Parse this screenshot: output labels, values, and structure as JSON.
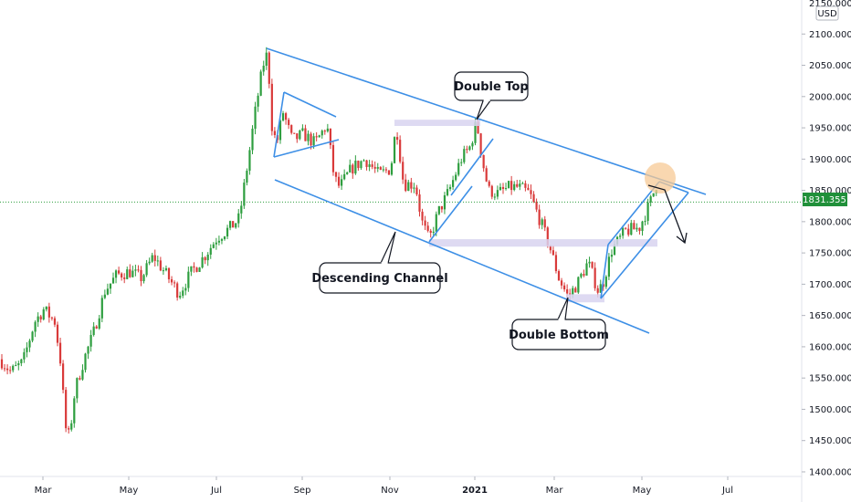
{
  "chart_data": {
    "type": "candlestick",
    "title": "",
    "currency": "USD",
    "x_labels": [
      "Mar",
      "May",
      "Jul",
      "Sep",
      "Nov",
      "2021",
      "Mar",
      "May",
      "Jul"
    ],
    "y_ticks": [
      "2150.000",
      "2100.000",
      "2050.000",
      "2000.000",
      "1950.000",
      "1900.000",
      "1850.000",
      "1800.000",
      "1750.000",
      "1700.000",
      "1650.000",
      "1600.000",
      "1550.000",
      "1500.000",
      "1450.000",
      "1400.000"
    ],
    "ylim": [
      1400,
      2150
    ],
    "current_price": "1831.355",
    "key_points": [
      {
        "label": "Mar 2020 low",
        "value": 1455
      },
      {
        "label": "Aug 2020 high",
        "value": 2070
      },
      {
        "label": "Nov 2020 low",
        "value": 1765
      },
      {
        "label": "Jan 2021 high",
        "value": 1960
      },
      {
        "label": "Mar 2021 low",
        "value": 1677
      },
      {
        "label": "May 2021 high",
        "value": 1865
      }
    ],
    "annotations": [
      "Double Top",
      "Descending Channel",
      "Double Bottom"
    ],
    "grid": true,
    "legend": "none"
  },
  "colors": {
    "up": "#26a69a",
    "down": "#ef5350",
    "up_candle": "#2e9e3f",
    "down_candle": "#d93a3a",
    "trendline": "#3d8fe6",
    "zone": "#d8d3f0",
    "price_badge": "#20903a",
    "price_line": "#2e9e3f",
    "axis_text": "#131722",
    "callout_border": "#131722",
    "target_circle": "#f7c995"
  }
}
